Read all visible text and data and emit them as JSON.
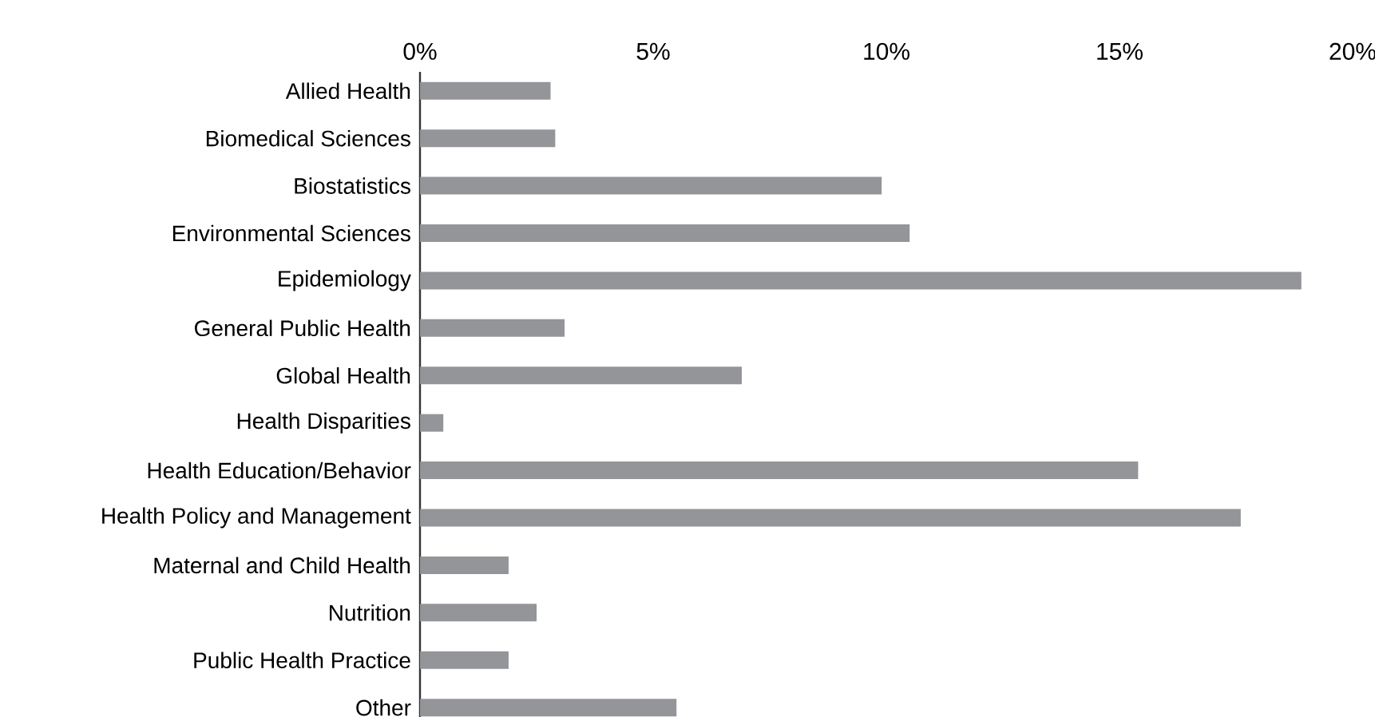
{
  "chart_data": {
    "type": "bar",
    "orientation": "horizontal",
    "categories": [
      "Allied Health",
      "Biomedical Sciences",
      "Biostatistics",
      "Environmental Sciences",
      "Epidemiology",
      "General Public Health",
      "Global Health",
      "Health Disparities",
      "Health Education/Behavior",
      "Health Policy and Management",
      "Maternal and Child Health",
      "Nutrition",
      "Public Health Practice",
      "Other"
    ],
    "values": [
      2.8,
      2.9,
      9.9,
      10.5,
      18.9,
      3.1,
      6.9,
      0.5,
      15.4,
      17.6,
      1.9,
      2.5,
      1.9,
      5.5
    ],
    "color": "#939598",
    "xlim": [
      0,
      20
    ],
    "xticks": [
      {
        "value": 0,
        "label": "0%"
      },
      {
        "value": 5,
        "label": "5%"
      },
      {
        "value": 10,
        "label": "10%"
      },
      {
        "value": 15,
        "label": "15%"
      },
      {
        "value": 20,
        "label": "20%"
      }
    ]
  }
}
